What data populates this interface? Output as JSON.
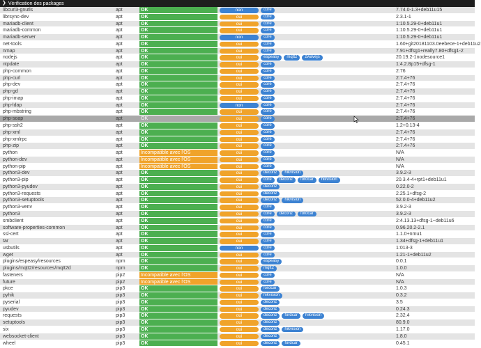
{
  "header": {
    "title": "Vérification des packages"
  },
  "colors": {
    "ok": "#4caf50",
    "warning": "#f0a32a",
    "oui": "#f0a32a",
    "non": "#3c82d2",
    "plugin": "#3c82d2",
    "header_bg": "#1e1e1e"
  },
  "rows": [
    {
      "name": "libcurl3-gnutls",
      "type": "apt",
      "status": "OK",
      "status_kind": "ok",
      "flag": "non",
      "plugins": [
        "core"
      ],
      "version": "7.74.0-1.3+deb11u15"
    },
    {
      "name": "librsync-dev",
      "type": "apt",
      "status": "OK",
      "status_kind": "ok",
      "flag": "oui",
      "plugins": [
        "core"
      ],
      "version": "2.3.1-1"
    },
    {
      "name": "mariadb-client",
      "type": "apt",
      "status": "OK",
      "status_kind": "ok",
      "flag": "oui",
      "plugins": [
        "core"
      ],
      "version": "1:10.5.29-0+deb11u1"
    },
    {
      "name": "mariadb-common",
      "type": "apt",
      "status": "OK",
      "status_kind": "ok",
      "flag": "oui",
      "plugins": [
        "core"
      ],
      "version": "1:10.5.29-0+deb11u1"
    },
    {
      "name": "mariadb-server",
      "type": "apt",
      "status": "OK",
      "status_kind": "ok",
      "flag": "non",
      "plugins": [
        "core"
      ],
      "version": "1:10.5.29-0+deb11u1"
    },
    {
      "name": "net-tools",
      "type": "apt",
      "status": "OK",
      "status_kind": "ok",
      "flag": "oui",
      "plugins": [
        "core"
      ],
      "version": "1.60+git20181103.0eebece-1+deb11u2"
    },
    {
      "name": "nmap",
      "type": "apt",
      "status": "OK",
      "status_kind": "ok",
      "flag": "oui",
      "plugins": [
        "core"
      ],
      "version": "7.91+dfsg1+really7.80+dfsg1-2"
    },
    {
      "name": "nodejs",
      "type": "apt",
      "status": "OK",
      "status_kind": "ok",
      "flag": "oui",
      "plugins": [
        "espeasy",
        "mqtt2",
        "zwavejs"
      ],
      "version": "20.19.2-1nodesource1"
    },
    {
      "name": "ntpdate",
      "type": "apt",
      "status": "OK",
      "status_kind": "ok",
      "flag": "oui",
      "plugins": [
        "core"
      ],
      "version": "1:4.2.8p15+dfsg-1"
    },
    {
      "name": "php-common",
      "type": "apt",
      "status": "OK",
      "status_kind": "ok",
      "flag": "oui",
      "plugins": [
        "core"
      ],
      "version": "2:76"
    },
    {
      "name": "php-curl",
      "type": "apt",
      "status": "OK",
      "status_kind": "ok",
      "flag": "oui",
      "plugins": [
        "core"
      ],
      "version": "2:7.4+76"
    },
    {
      "name": "php-dev",
      "type": "apt",
      "status": "OK",
      "status_kind": "ok",
      "flag": "oui",
      "plugins": [
        "core"
      ],
      "version": "2:7.4+76"
    },
    {
      "name": "php-gd",
      "type": "apt",
      "status": "OK",
      "status_kind": "ok",
      "flag": "oui",
      "plugins": [
        "core"
      ],
      "version": "2:7.4+76"
    },
    {
      "name": "php-imap",
      "type": "apt",
      "status": "OK",
      "status_kind": "ok",
      "flag": "oui",
      "plugins": [
        "core"
      ],
      "version": "2:7.4+76"
    },
    {
      "name": "php-ldap",
      "type": "apt",
      "status": "OK",
      "status_kind": "ok",
      "flag": "non",
      "plugins": [
        "core"
      ],
      "version": "2:7.4+76"
    },
    {
      "name": "php-mbstring",
      "type": "apt",
      "status": "OK",
      "status_kind": "ok",
      "flag": "oui",
      "plugins": [
        "core"
      ],
      "version": "2:7.4+76"
    },
    {
      "name": "php-soap",
      "type": "apt",
      "status": "OK",
      "status_kind": "gray",
      "flag": "oui",
      "plugins": [
        "core"
      ],
      "version": "2:7.4+76",
      "dim": true
    },
    {
      "name": "php-ssh2",
      "type": "apt",
      "status": "OK",
      "status_kind": "ok",
      "flag": "oui",
      "plugins": [
        "core"
      ],
      "version": "1.2+0.13-4"
    },
    {
      "name": "php-xml",
      "type": "apt",
      "status": "OK",
      "status_kind": "ok",
      "flag": "oui",
      "plugins": [
        "core"
      ],
      "version": "2:7.4+76"
    },
    {
      "name": "php-xmlrpc",
      "type": "apt",
      "status": "OK",
      "status_kind": "ok",
      "flag": "oui",
      "plugins": [
        "core"
      ],
      "version": "2:7.4+76"
    },
    {
      "name": "php-zip",
      "type": "apt",
      "status": "OK",
      "status_kind": "ok",
      "flag": "oui",
      "plugins": [
        "core"
      ],
      "version": "2:7.4+76"
    },
    {
      "name": "python",
      "type": "apt",
      "status": "Incompatible avec l'OS",
      "status_kind": "warn",
      "flag": "oui",
      "plugins": [
        "core"
      ],
      "version": "N/A"
    },
    {
      "name": "python-dev",
      "type": "apt",
      "status": "Incompatible avec l'OS",
      "status_kind": "warn",
      "flag": "oui",
      "plugins": [
        "core"
      ],
      "version": "N/A"
    },
    {
      "name": "python-pip",
      "type": "apt",
      "status": "Incompatible avec l'OS",
      "status_kind": "warn",
      "flag": "oui",
      "plugins": [
        "core"
      ],
      "version": "N/A"
    },
    {
      "name": "python3-dev",
      "type": "apt",
      "status": "OK",
      "status_kind": "ok",
      "flag": "oui",
      "plugins": [
        "deconz",
        "hikvision"
      ],
      "version": "3.9.2-3"
    },
    {
      "name": "python3-pip",
      "type": "apt",
      "status": "OK",
      "status_kind": "ok",
      "flag": "oui",
      "plugins": [
        "core",
        "deconz",
        "fordcar",
        "hikvision"
      ],
      "version": "20.3.4-4+rpt1+deb11u1"
    },
    {
      "name": "python3-pyudev",
      "type": "apt",
      "status": "OK",
      "status_kind": "ok",
      "flag": "oui",
      "plugins": [
        "deconz"
      ],
      "version": "0.22.0-2"
    },
    {
      "name": "python3-requests",
      "type": "apt",
      "status": "OK",
      "status_kind": "ok",
      "flag": "oui",
      "plugins": [
        "deconz"
      ],
      "version": "2.25.1+dfsg-2"
    },
    {
      "name": "python3-setuptools",
      "type": "apt",
      "status": "OK",
      "status_kind": "ok",
      "flag": "oui",
      "plugins": [
        "deconz",
        "hikvision"
      ],
      "version": "52.0.0-4+deb11u2"
    },
    {
      "name": "python3-venv",
      "type": "apt",
      "status": "OK",
      "status_kind": "ok",
      "flag": "oui",
      "plugins": [
        "core"
      ],
      "version": "3.9.2-3"
    },
    {
      "name": "python3",
      "type": "apt",
      "status": "OK",
      "status_kind": "ok",
      "flag": "oui",
      "plugins": [
        "core",
        "deconz",
        "fordcar"
      ],
      "version": "3.9.2-3"
    },
    {
      "name": "smbclient",
      "type": "apt",
      "status": "OK",
      "status_kind": "ok",
      "flag": "oui",
      "plugins": [
        "core"
      ],
      "version": "2:4.13.13+dfsg-1~deb11u6"
    },
    {
      "name": "software-properties-common",
      "type": "apt",
      "status": "OK",
      "status_kind": "ok",
      "flag": "oui",
      "plugins": [
        "core"
      ],
      "version": "0.96.20.2-2.1"
    },
    {
      "name": "ssl-cert",
      "type": "apt",
      "status": "OK",
      "status_kind": "ok",
      "flag": "oui",
      "plugins": [
        "core"
      ],
      "version": "1.1.0+nmu1"
    },
    {
      "name": "tar",
      "type": "apt",
      "status": "OK",
      "status_kind": "ok",
      "flag": "oui",
      "plugins": [
        "core"
      ],
      "version": "1.34+dfsg-1+deb11u1"
    },
    {
      "name": "usbutils",
      "type": "apt",
      "status": "OK",
      "status_kind": "ok",
      "flag": "non",
      "plugins": [
        "core"
      ],
      "version": "1:013-3"
    },
    {
      "name": "wget",
      "type": "apt",
      "status": "OK",
      "status_kind": "ok",
      "flag": "oui",
      "plugins": [
        "core"
      ],
      "version": "1.21-1+deb11u2"
    },
    {
      "name": "plugins/espeasy/resources",
      "type": "npm",
      "status": "OK",
      "status_kind": "ok",
      "flag": "oui",
      "plugins": [
        "espeasy"
      ],
      "version": "0.0.1"
    },
    {
      "name": "plugins/mqtt2/resources/mqtt2d",
      "type": "npm",
      "status": "OK",
      "status_kind": "ok",
      "flag": "oui",
      "plugins": [
        "mqtt2"
      ],
      "version": "1.0.0"
    },
    {
      "name": "fasteners",
      "type": "pip2",
      "status": "Incompatible avec l'OS",
      "status_kind": "warn",
      "flag": "oui",
      "plugins": [
        "core"
      ],
      "version": "N/A"
    },
    {
      "name": "future",
      "type": "pip2",
      "status": "Incompatible avec l'OS",
      "status_kind": "warn",
      "flag": "oui",
      "plugins": [
        "core"
      ],
      "version": "N/A"
    },
    {
      "name": "pkce",
      "type": "pip3",
      "status": "OK",
      "status_kind": "ok",
      "flag": "oui",
      "plugins": [
        "fordcar"
      ],
      "version": "1.0.3"
    },
    {
      "name": "pyhik",
      "type": "pip3",
      "status": "OK",
      "status_kind": "ok",
      "flag": "oui",
      "plugins": [
        "hikvision"
      ],
      "version": "0.3.2"
    },
    {
      "name": "pyserial",
      "type": "pip3",
      "status": "OK",
      "status_kind": "ok",
      "flag": "oui",
      "plugins": [
        "deconz"
      ],
      "version": "3.5"
    },
    {
      "name": "pyudev",
      "type": "pip3",
      "status": "OK",
      "status_kind": "ok",
      "flag": "oui",
      "plugins": [
        "deconz"
      ],
      "version": "0.24.3"
    },
    {
      "name": "requests",
      "type": "pip3",
      "status": "OK",
      "status_kind": "ok",
      "flag": "oui",
      "plugins": [
        "deconz",
        "fordcar",
        "hikvision"
      ],
      "version": "2.32.4"
    },
    {
      "name": "setuptools",
      "type": "pip3",
      "status": "OK",
      "status_kind": "ok",
      "flag": "oui",
      "plugins": [
        "deconz"
      ],
      "version": "80.9.0"
    },
    {
      "name": "six",
      "type": "pip3",
      "status": "OK",
      "status_kind": "ok",
      "flag": "oui",
      "plugins": [
        "deconz",
        "hikvision"
      ],
      "version": "1.17.0"
    },
    {
      "name": "websocket-client",
      "type": "pip3",
      "status": "OK",
      "status_kind": "ok",
      "flag": "oui",
      "plugins": [
        "deconz"
      ],
      "version": "1.8.0"
    },
    {
      "name": "wheel",
      "type": "pip3",
      "status": "OK",
      "status_kind": "ok",
      "flag": "oui",
      "plugins": [
        "deconz",
        "fordcar"
      ],
      "version": "0.45.1"
    }
  ]
}
